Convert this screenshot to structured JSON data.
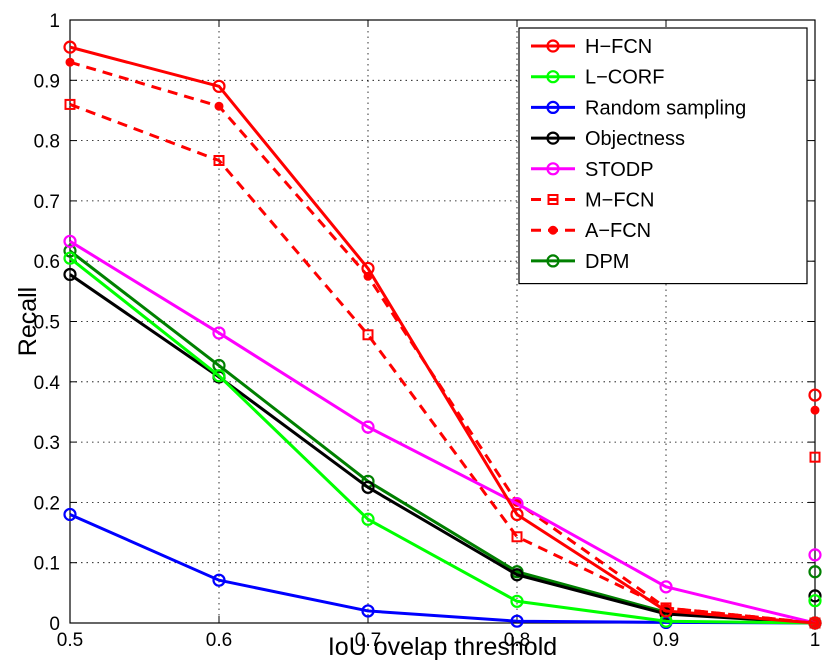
{
  "chart_data": {
    "type": "line",
    "title": "",
    "xlabel": "IoU ovelap threshold",
    "ylabel": "Recall",
    "xlim": [
      0.5,
      1
    ],
    "ylim": [
      0,
      1
    ],
    "x_ticks": [
      "0.5",
      "0.6",
      "0.7",
      "0.8",
      "0.9",
      "1"
    ],
    "y_ticks": [
      "0",
      "0.1",
      "0.2",
      "0.3",
      "0.4",
      "0.5",
      "0.6",
      "0.7",
      "0.8",
      "0.9",
      "1"
    ],
    "grid": true,
    "legend_position": "top-right",
    "x": [
      0.5,
      0.6,
      0.7,
      0.8,
      0.9,
      1.0
    ],
    "series": [
      {
        "name": "H−FCN",
        "color": "#ff0000",
        "dash": "solid",
        "marker": "circle",
        "values": [
          0.955,
          0.89,
          0.588,
          0.18,
          0.02,
          0.0
        ],
        "extra_point": [
          1.0,
          0.378
        ]
      },
      {
        "name": "L−CORF",
        "color": "#00ff00",
        "dash": "solid",
        "marker": "circle",
        "values": [
          0.605,
          0.41,
          0.172,
          0.036,
          0.003,
          0.0
        ],
        "extra_point": [
          1.0,
          0.037
        ]
      },
      {
        "name": "Random sampling",
        "color": "#0000ff",
        "dash": "solid",
        "marker": "circle",
        "values": [
          0.18,
          0.071,
          0.02,
          0.003,
          0.001,
          0.0
        ],
        "extra_point": null
      },
      {
        "name": "Objectness",
        "color": "#000000",
        "dash": "solid",
        "marker": "circle",
        "values": [
          0.578,
          0.408,
          0.225,
          0.08,
          0.015,
          0.0
        ],
        "extra_point": [
          1.0,
          0.045
        ]
      },
      {
        "name": "STODP",
        "color": "#ff00ff",
        "dash": "solid",
        "marker": "circle",
        "values": [
          0.633,
          0.481,
          0.325,
          0.198,
          0.06,
          0.0
        ],
        "extra_point": [
          1.0,
          0.113
        ]
      },
      {
        "name": "M−FCN",
        "color": "#ff0000",
        "dash": "dashed",
        "marker": "square",
        "values": [
          0.86,
          0.767,
          0.478,
          0.143,
          0.025,
          0.0
        ],
        "extra_point": [
          1.0,
          0.275
        ]
      },
      {
        "name": "A−FCN",
        "color": "#ff0000",
        "dash": "dashed",
        "marker": "dot",
        "values": [
          0.93,
          0.857,
          0.575,
          0.2,
          0.025,
          0.0
        ],
        "extra_point": [
          1.0,
          0.353
        ]
      },
      {
        "name": "DPM",
        "color": "#008000",
        "dash": "solid",
        "marker": "circle",
        "values": [
          0.617,
          0.427,
          0.235,
          0.085,
          0.018,
          0.0
        ],
        "extra_point": [
          1.0,
          0.085
        ]
      }
    ]
  }
}
